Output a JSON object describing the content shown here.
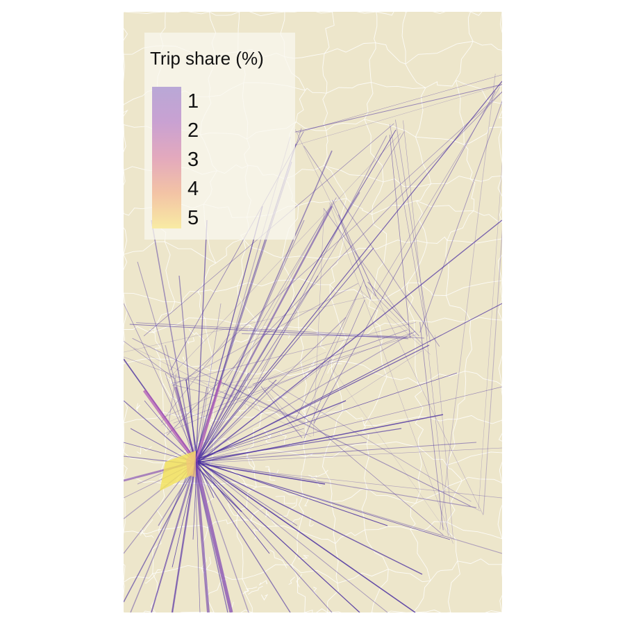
{
  "legend": {
    "title": "Trip share (%)",
    "labels": [
      "1",
      "2",
      "3",
      "4",
      "5"
    ],
    "colors": [
      "#b9a8d6",
      "#c9a1d2",
      "#e3a9bd",
      "#f3c3a5",
      "#f8eba4"
    ]
  },
  "map": {
    "background_color": "#ede6cb",
    "boundary_color": "#ffffff",
    "flow_color_low": "#4a2fa0",
    "flow_color_mid": "#b05ab8",
    "flow_color_high": "#f2e25a"
  }
}
